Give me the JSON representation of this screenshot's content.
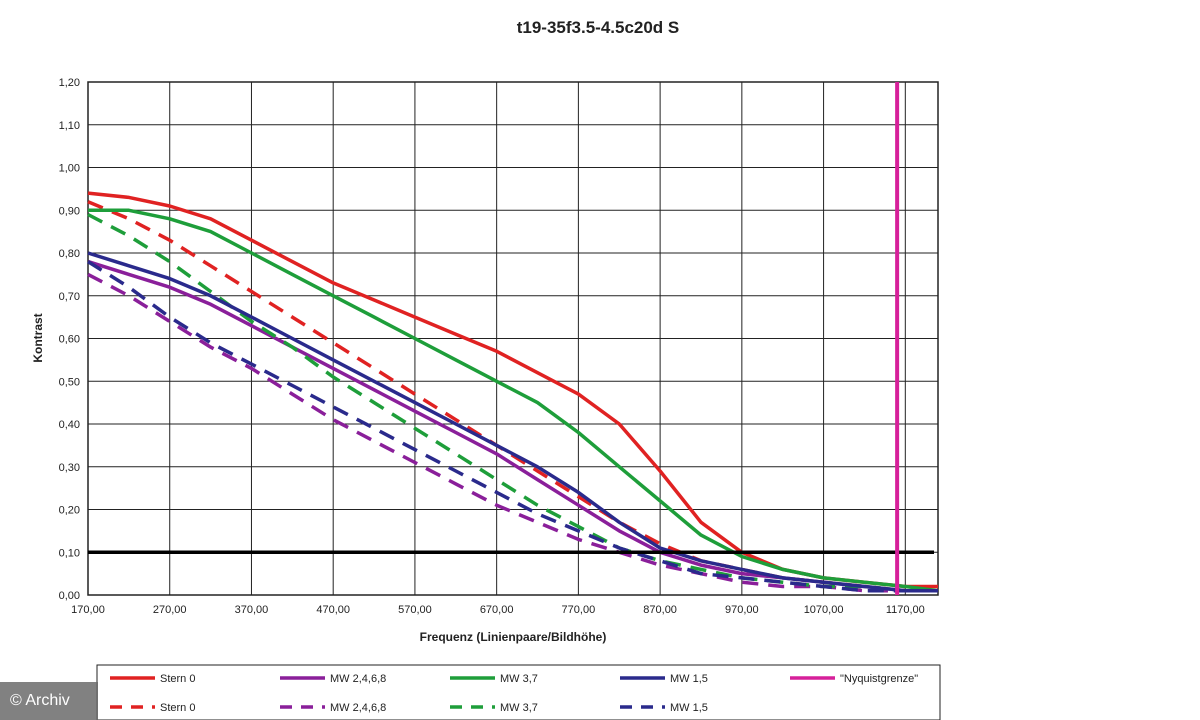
{
  "chart_data": {
    "type": "line",
    "title": "t19-35f3.5-4.5c20d S",
    "xlabel": "Frequenz (Linienpaare/Bildhöhe)",
    "ylabel": "Kontrast",
    "xlim": [
      170,
      1210
    ],
    "ylim": [
      0,
      1.2
    ],
    "x_ticks": [
      "170,00",
      "270,00",
      "370,00",
      "470,00",
      "570,00",
      "670,00",
      "770,00",
      "870,00",
      "970,00",
      "1070,00",
      "1170,00"
    ],
    "y_ticks": [
      "0,00",
      "0,10",
      "0,20",
      "0,30",
      "0,40",
      "0,50",
      "0,60",
      "0,70",
      "0,80",
      "0,90",
      "1,00",
      "1,10",
      "1,20"
    ],
    "grid": true,
    "legend_position": "bottom",
    "reference_lines": [
      {
        "kind": "horizontal",
        "y": 0.1,
        "color": "#000000"
      },
      {
        "kind": "vertical",
        "x": 1160,
        "color": "#d6209a",
        "name": "\"Nyquistgrenze\""
      }
    ],
    "series": [
      {
        "name": "Stern 0",
        "color": "#e02222",
        "dash": false,
        "x": [
          170,
          220,
          270,
          320,
          370,
          420,
          470,
          520,
          570,
          620,
          670,
          720,
          770,
          820,
          870,
          920,
          970,
          1020,
          1070,
          1120,
          1170,
          1210
        ],
        "y": [
          0.94,
          0.93,
          0.91,
          0.88,
          0.83,
          0.78,
          0.73,
          0.69,
          0.65,
          0.61,
          0.57,
          0.52,
          0.47,
          0.4,
          0.29,
          0.17,
          0.1,
          0.06,
          0.04,
          0.03,
          0.02,
          0.02
        ]
      },
      {
        "name": "Stern 0",
        "color": "#e02222",
        "dash": true,
        "x": [
          170,
          220,
          270,
          320,
          370,
          420,
          470,
          520,
          570,
          620,
          670,
          720,
          770,
          820,
          870,
          920,
          970,
          1020,
          1070,
          1120,
          1170,
          1210
        ],
        "y": [
          0.92,
          0.88,
          0.83,
          0.77,
          0.71,
          0.65,
          0.59,
          0.53,
          0.47,
          0.41,
          0.35,
          0.29,
          0.23,
          0.17,
          0.12,
          0.08,
          0.06,
          0.04,
          0.03,
          0.02,
          0.01,
          0.01
        ]
      },
      {
        "name": "MW 2,4,6,8",
        "color": "#8a1f9a",
        "dash": false,
        "x": [
          170,
          220,
          270,
          320,
          370,
          420,
          470,
          520,
          570,
          620,
          670,
          720,
          770,
          820,
          870,
          920,
          970,
          1020,
          1070,
          1120,
          1170,
          1210
        ],
        "y": [
          0.78,
          0.75,
          0.72,
          0.68,
          0.63,
          0.58,
          0.53,
          0.48,
          0.43,
          0.38,
          0.33,
          0.27,
          0.21,
          0.15,
          0.1,
          0.07,
          0.05,
          0.04,
          0.03,
          0.02,
          0.01,
          0.01
        ]
      },
      {
        "name": "MW 2,4,6,8",
        "color": "#8a1f9a",
        "dash": true,
        "x": [
          170,
          220,
          270,
          320,
          370,
          420,
          470,
          520,
          570,
          620,
          670,
          720,
          770,
          820,
          870,
          920,
          970,
          1020,
          1070,
          1120,
          1170,
          1210
        ],
        "y": [
          0.75,
          0.7,
          0.64,
          0.58,
          0.53,
          0.47,
          0.41,
          0.36,
          0.31,
          0.26,
          0.21,
          0.17,
          0.13,
          0.1,
          0.07,
          0.05,
          0.03,
          0.02,
          0.02,
          0.01,
          0.01,
          0.01
        ]
      },
      {
        "name": "MW 3,7",
        "color": "#1e9e3a",
        "dash": false,
        "x": [
          170,
          220,
          270,
          320,
          370,
          420,
          470,
          520,
          570,
          620,
          670,
          720,
          770,
          820,
          870,
          920,
          970,
          1020,
          1070,
          1120,
          1170,
          1210
        ],
        "y": [
          0.9,
          0.9,
          0.88,
          0.85,
          0.8,
          0.75,
          0.7,
          0.65,
          0.6,
          0.55,
          0.5,
          0.45,
          0.38,
          0.3,
          0.22,
          0.14,
          0.09,
          0.06,
          0.04,
          0.03,
          0.02,
          0.01
        ]
      },
      {
        "name": "MW 3,7",
        "color": "#1e9e3a",
        "dash": true,
        "x": [
          170,
          220,
          270,
          320,
          370,
          420,
          470,
          520,
          570,
          620,
          670,
          720,
          770,
          820,
          870,
          920,
          970,
          1020,
          1070,
          1120,
          1170,
          1210
        ],
        "y": [
          0.89,
          0.84,
          0.78,
          0.71,
          0.64,
          0.58,
          0.51,
          0.45,
          0.39,
          0.33,
          0.27,
          0.21,
          0.16,
          0.11,
          0.08,
          0.06,
          0.04,
          0.03,
          0.02,
          0.02,
          0.01,
          0.01
        ]
      },
      {
        "name": "MW 1,5",
        "color": "#2a2a8c",
        "dash": false,
        "x": [
          170,
          220,
          270,
          320,
          370,
          420,
          470,
          520,
          570,
          620,
          670,
          720,
          770,
          820,
          870,
          920,
          970,
          1020,
          1070,
          1120,
          1170,
          1210
        ],
        "y": [
          0.8,
          0.77,
          0.74,
          0.7,
          0.65,
          0.6,
          0.55,
          0.5,
          0.45,
          0.4,
          0.35,
          0.3,
          0.24,
          0.17,
          0.11,
          0.08,
          0.06,
          0.04,
          0.03,
          0.02,
          0.01,
          0.01
        ]
      },
      {
        "name": "MW 1,5",
        "color": "#2a2a8c",
        "dash": true,
        "x": [
          170,
          220,
          270,
          320,
          370,
          420,
          470,
          520,
          570,
          620,
          670,
          720,
          770,
          820,
          870,
          920,
          970,
          1020,
          1070,
          1120,
          1170,
          1210
        ],
        "y": [
          0.78,
          0.72,
          0.65,
          0.59,
          0.54,
          0.49,
          0.44,
          0.39,
          0.34,
          0.29,
          0.24,
          0.19,
          0.15,
          0.11,
          0.08,
          0.05,
          0.04,
          0.03,
          0.02,
          0.01,
          0.01,
          0.01
        ]
      }
    ],
    "legend": [
      {
        "label": "Stern 0",
        "color": "#e02222",
        "dash": false
      },
      {
        "label": "MW 2,4,6,8",
        "color": "#8a1f9a",
        "dash": false
      },
      {
        "label": "MW 3,7",
        "color": "#1e9e3a",
        "dash": false
      },
      {
        "label": "MW 1,5",
        "color": "#2a2a8c",
        "dash": false
      },
      {
        "label": "\"Nyquistgrenze\"",
        "color": "#d6209a",
        "dash": false
      },
      {
        "label": "Stern 0",
        "color": "#e02222",
        "dash": true
      },
      {
        "label": "MW 2,4,6,8",
        "color": "#8a1f9a",
        "dash": true
      },
      {
        "label": "MW 3,7",
        "color": "#1e9e3a",
        "dash": true
      },
      {
        "label": "MW 1,5",
        "color": "#2a2a8c",
        "dash": true
      }
    ]
  },
  "watermark": {
    "text": "© Archiv"
  }
}
